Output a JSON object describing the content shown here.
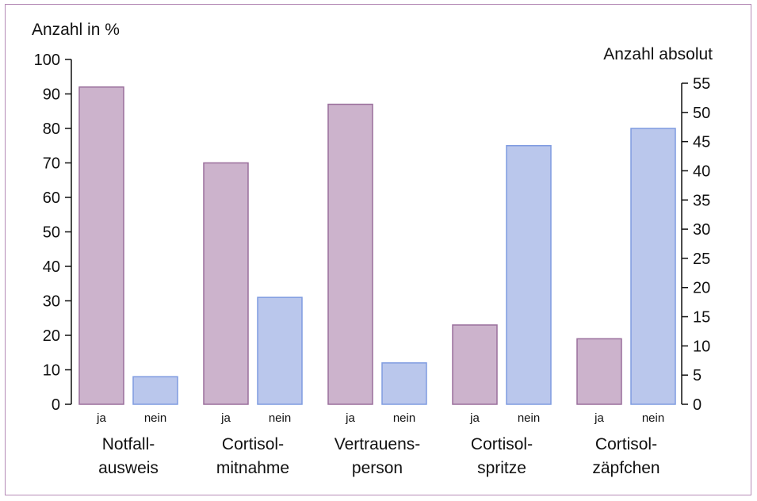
{
  "chart_data": {
    "type": "bar",
    "ylabel_left": "Anzahl in %",
    "ylabel_right": "Anzahl absolut",
    "ylim_left": [
      0,
      100
    ],
    "yticks_left": [
      0,
      10,
      20,
      30,
      40,
      50,
      60,
      70,
      80,
      90,
      100
    ],
    "ylim_right": [
      0,
      55
    ],
    "yticks_right": [
      0,
      5,
      10,
      15,
      20,
      25,
      30,
      35,
      40,
      45,
      50,
      55
    ],
    "categories": [
      [
        "Notfall-",
        "ausweis"
      ],
      [
        "Cortisol-",
        "mitnahme"
      ],
      [
        "Vertrauens-",
        "person"
      ],
      [
        "Cortisol-",
        "spritze"
      ],
      [
        "Cortisol-",
        "zäpfchen"
      ]
    ],
    "series": [
      {
        "name": "ja",
        "color": "#ccb3cc",
        "border": "#9a6f9c",
        "values": [
          92,
          70,
          87,
          23,
          19
        ]
      },
      {
        "name": "nein",
        "color": "#bac7ec",
        "border": "#7f9be0",
        "values": [
          8,
          31,
          12,
          75,
          80
        ]
      }
    ],
    "grid": false,
    "legend": "none"
  }
}
